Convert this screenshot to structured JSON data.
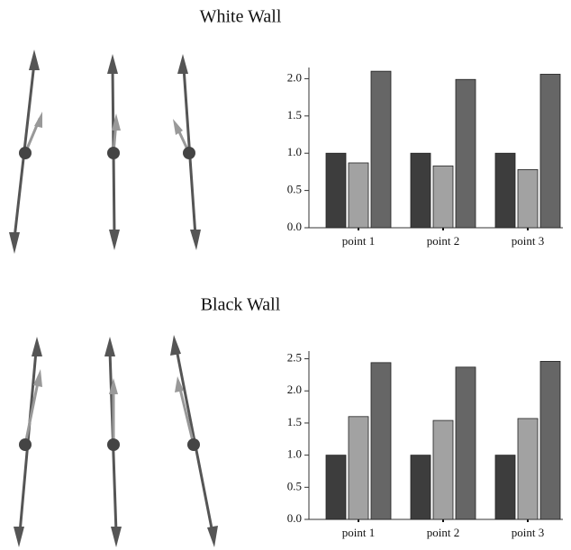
{
  "chart_data": [
    {
      "type": "bar",
      "title": "White Wall",
      "categories": [
        "point 1",
        "point 2",
        "point 3"
      ],
      "series": [
        {
          "color": "#3d3d3d",
          "values": [
            1.0,
            1.0,
            1.0
          ]
        },
        {
          "color": "#a2a2a2",
          "values": [
            0.87,
            0.83,
            0.78
          ]
        },
        {
          "color": "#666666",
          "values": [
            2.1,
            1.99,
            2.06
          ]
        }
      ],
      "ylim": [
        0,
        2.15
      ],
      "yticks": [
        {
          "value": 0,
          "label": "0.0"
        },
        {
          "value": 0.5,
          "label": "0.5"
        },
        {
          "value": 1,
          "label": "1.0"
        },
        {
          "value": 1.5,
          "label": "1.5"
        },
        {
          "value": 2,
          "label": "2.0"
        }
      ]
    },
    {
      "type": "bar",
      "title": "Black Wall",
      "categories": [
        "point 1",
        "point 2",
        "point 3"
      ],
      "series": [
        {
          "color": "#3d3d3d",
          "values": [
            1.0,
            1.0,
            1.0
          ]
        },
        {
          "color": "#a2a2a2",
          "values": [
            1.6,
            1.54,
            1.57
          ]
        },
        {
          "color": "#666666",
          "values": [
            2.44,
            2.37,
            2.46
          ]
        }
      ],
      "ylim": [
        0,
        2.62
      ],
      "yticks": [
        {
          "value": 0,
          "label": "0.0"
        },
        {
          "value": 0.5,
          "label": "0.5"
        },
        {
          "value": 1,
          "label": "1.0"
        },
        {
          "value": 1.5,
          "label": "1.5"
        },
        {
          "value": 2,
          "label": "2.0"
        },
        {
          "value": 2.5,
          "label": "2.5"
        }
      ]
    }
  ]
}
